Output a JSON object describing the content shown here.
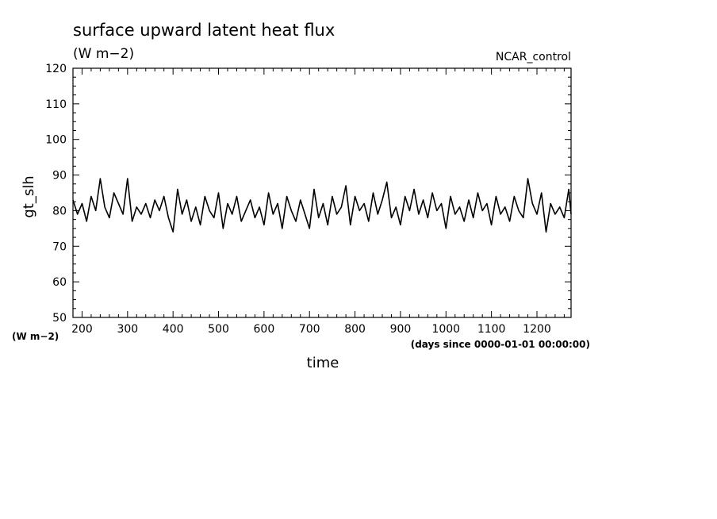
{
  "chart_data": {
    "type": "line",
    "title": "surface upward latent heat flux",
    "units_label": "(W m−2)",
    "run_label": "NCAR_control",
    "ylabel": "gt_slh",
    "y_units_label": "(W m−2)",
    "xlabel": "time",
    "x_units_label": "(days since 0000-01-01 00:00:00)",
    "xlim": [
      180,
      1275
    ],
    "ylim": [
      50,
      120
    ],
    "x_ticks": [
      200,
      300,
      400,
      500,
      600,
      700,
      800,
      900,
      1000,
      1100,
      1200
    ],
    "y_ticks": [
      50,
      60,
      70,
      80,
      90,
      100,
      110,
      120
    ],
    "grid": false,
    "series": [
      {
        "x": [
          180,
          190,
          200,
          210,
          220,
          230,
          240,
          250,
          260,
          270,
          280,
          290,
          300,
          310,
          320,
          330,
          340,
          350,
          360,
          370,
          380,
          390,
          400,
          410,
          420,
          430,
          440,
          450,
          460,
          470,
          480,
          490,
          500,
          510,
          520,
          530,
          540,
          550,
          560,
          570,
          580,
          590,
          600,
          610,
          620,
          630,
          640,
          650,
          660,
          670,
          680,
          690,
          700,
          710,
          720,
          730,
          740,
          750,
          760,
          770,
          780,
          790,
          800,
          810,
          820,
          830,
          840,
          850,
          860,
          870,
          880,
          890,
          900,
          910,
          920,
          930,
          940,
          950,
          960,
          970,
          980,
          990,
          1000,
          1010,
          1020,
          1030,
          1040,
          1050,
          1060,
          1070,
          1080,
          1090,
          1100,
          1110,
          1120,
          1130,
          1140,
          1150,
          1160,
          1170,
          1180,
          1190,
          1200,
          1210,
          1220,
          1230,
          1240,
          1250,
          1260,
          1270,
          1275
        ],
        "values": [
          83,
          79,
          82,
          77,
          84,
          80,
          89,
          81,
          78,
          85,
          82,
          79,
          89,
          77,
          81,
          79,
          82,
          78,
          83,
          80,
          84,
          78,
          74,
          86,
          79,
          83,
          77,
          81,
          76,
          84,
          80,
          78,
          85,
          75,
          82,
          79,
          84,
          77,
          80,
          83,
          78,
          81,
          76,
          85,
          79,
          82,
          75,
          84,
          80,
          77,
          83,
          79,
          75,
          86,
          78,
          82,
          76,
          84,
          79,
          81,
          87,
          76,
          84,
          80,
          82,
          77,
          85,
          79,
          83,
          88,
          78,
          81,
          76,
          84,
          80,
          86,
          79,
          83,
          78,
          85,
          80,
          82,
          75,
          84,
          79,
          81,
          77,
          83,
          78,
          85,
          80,
          82,
          76,
          84,
          79,
          81,
          77,
          84,
          80,
          78,
          89,
          82,
          79,
          85,
          74,
          82,
          79,
          81,
          78,
          86,
          79
        ]
      }
    ]
  }
}
